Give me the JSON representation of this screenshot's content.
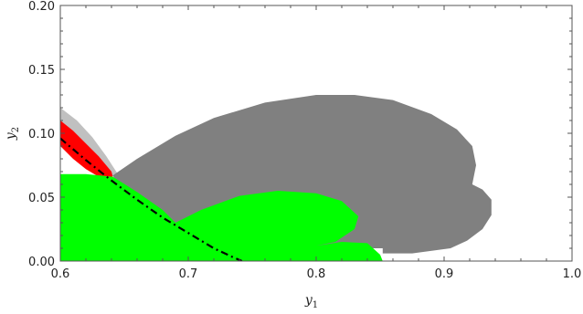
{
  "chart_data": {
    "type": "area",
    "xlabel": "y",
    "xlabel_sub": "1",
    "ylabel": "y",
    "ylabel_sub": "2",
    "xlim": [
      0.6,
      1.0
    ],
    "ylim": [
      0.0,
      0.2
    ],
    "xticks": [
      0.6,
      0.7,
      0.8,
      0.9,
      1.0
    ],
    "xtick_labels": [
      "0.6",
      "0.7",
      "0.8",
      "0.9",
      "1.0"
    ],
    "yticks": [
      0.0,
      0.05,
      0.1,
      0.15,
      0.2
    ],
    "ytick_labels": [
      "0.00",
      "0.05",
      "0.10",
      "0.15",
      "0.20"
    ],
    "grid": false,
    "regions": [
      {
        "color": "#c0c0c0",
        "points": [
          [
            0.6,
            0.12
          ],
          [
            0.613,
            0.11
          ],
          [
            0.625,
            0.097
          ],
          [
            0.636,
            0.082
          ],
          [
            0.645,
            0.068
          ],
          [
            0.64,
            0.066
          ],
          [
            0.6,
            0.1
          ]
        ]
      },
      {
        "color": "#808080",
        "points": [
          [
            0.641,
            0.067
          ],
          [
            0.66,
            0.08
          ],
          [
            0.69,
            0.098
          ],
          [
            0.72,
            0.112
          ],
          [
            0.76,
            0.124
          ],
          [
            0.8,
            0.13
          ],
          [
            0.83,
            0.13
          ],
          [
            0.86,
            0.126
          ],
          [
            0.89,
            0.115
          ],
          [
            0.91,
            0.103
          ],
          [
            0.922,
            0.09
          ],
          [
            0.925,
            0.075
          ],
          [
            0.922,
            0.06
          ],
          [
            0.93,
            0.056
          ],
          [
            0.937,
            0.048
          ],
          [
            0.937,
            0.036
          ],
          [
            0.93,
            0.025
          ],
          [
            0.918,
            0.016
          ],
          [
            0.905,
            0.01
          ],
          [
            0.875,
            0.006
          ],
          [
            0.852,
            0.006
          ],
          [
            0.852,
            0.01
          ],
          [
            0.815,
            0.01
          ],
          [
            0.79,
            0.008
          ],
          [
            0.755,
            0.004
          ],
          [
            0.7,
            0.003
          ],
          [
            0.66,
            0.03
          ],
          [
            0.645,
            0.06
          ]
        ]
      },
      {
        "color": "#ff0000",
        "points": [
          [
            0.6,
            0.11
          ],
          [
            0.61,
            0.102
          ],
          [
            0.62,
            0.092
          ],
          [
            0.63,
            0.082
          ],
          [
            0.64,
            0.07
          ],
          [
            0.641,
            0.066
          ],
          [
            0.63,
            0.066
          ],
          [
            0.62,
            0.072
          ],
          [
            0.61,
            0.08
          ],
          [
            0.6,
            0.09
          ]
        ]
      },
      {
        "color": "#00ff00",
        "points": [
          [
            0.6,
            0.068
          ],
          [
            0.62,
            0.068
          ],
          [
            0.641,
            0.066
          ],
          [
            0.66,
            0.054
          ],
          [
            0.68,
            0.04
          ],
          [
            0.69,
            0.03
          ],
          [
            0.71,
            0.04
          ],
          [
            0.74,
            0.051
          ],
          [
            0.77,
            0.055
          ],
          [
            0.8,
            0.053
          ],
          [
            0.82,
            0.047
          ],
          [
            0.833,
            0.035
          ],
          [
            0.83,
            0.025
          ],
          [
            0.815,
            0.015
          ],
          [
            0.8,
            0.012
          ],
          [
            0.82,
            0.015
          ],
          [
            0.84,
            0.014
          ],
          [
            0.85,
            0.005
          ],
          [
            0.852,
            0.0
          ],
          [
            0.6,
            0.0
          ]
        ]
      }
    ],
    "curves": [
      {
        "style": "dash-dot",
        "color": "#000000",
        "points": [
          [
            0.6,
            0.096
          ],
          [
            0.62,
            0.079
          ],
          [
            0.64,
            0.063
          ],
          [
            0.66,
            0.048
          ],
          [
            0.68,
            0.034
          ],
          [
            0.7,
            0.022
          ],
          [
            0.72,
            0.01
          ],
          [
            0.735,
            0.003
          ],
          [
            0.742,
            0.0
          ]
        ]
      }
    ]
  }
}
